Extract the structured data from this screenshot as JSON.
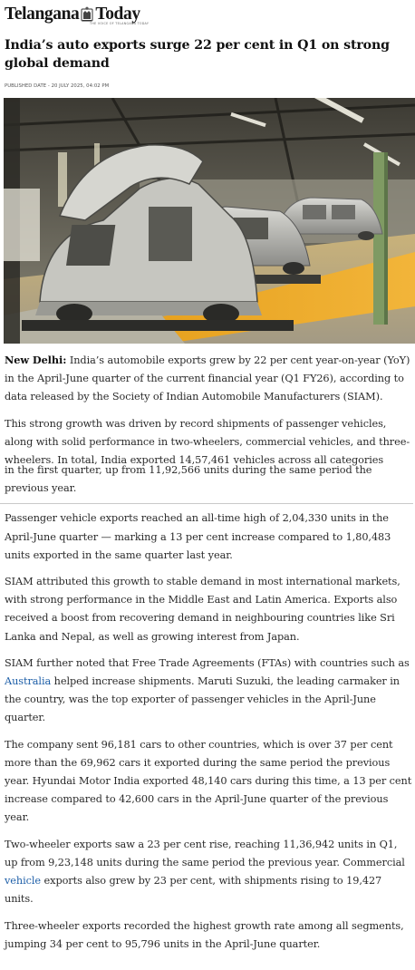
{
  "site": {
    "name_part1": "Telangana",
    "name_part2": "Today",
    "tagline": "THE VOICE OF TELANGANA TODAY"
  },
  "article": {
    "title": "India’s auto exports surge 22 per cent in Q1 on strong global demand",
    "published": "PUBLISHED DATE - 20 JULY 2025, 04:02 PM",
    "lead_place": "New Delhi:",
    "p1": " India’s automobile exports grew by 22 per cent year-on-year (YoY) in the April-June quarter of the current financial year (Q1 FY26), according to data released by the Society of Indian Automobile Manufacturers (SIAM).",
    "p2a": "This strong growth was driven by record shipments of passenger vehicles, along with solid performance in two-wheelers, commercial vehicles, and three-wheelers. In total, India exported 14,57,461 vehicles across all categories",
    "p2b": "in the first quarter, up from 11,92,566 units during the same period the previous year.",
    "p3": "Passenger vehicle exports reached an all-time high of 2,04,330 units in the April-June quarter — marking a 13 per cent increase compared to 1,80,483 units exported in the same quarter last year.",
    "p4": "SIAM attributed this growth to stable demand in most international markets, with strong performance in the Middle East and Latin America. Exports also received a boost from recovering demand in neighbouring countries like Sri Lanka and Nepal, as well as growing interest from Japan.",
    "p5_pre": "SIAM further noted that Free Trade Agreements (FTAs) with countries such as ",
    "p5_link": "Australia",
    "p5_post": " helped increase shipments. Maruti Suzuki, the leading carmaker in the country, was the top exporter of passenger vehicles in the April-June quarter.",
    "p6": "The company sent 96,181 cars to other countries, which is over 37 per cent more than the 69,962 cars it exported during the same period the previous year. Hyundai Motor India exported 48,140 cars during this time, a 13 per cent increase compared to 42,600 cars in the April-June quarter of the previous year.",
    "p7_pre": "Two-wheeler exports saw a 23 per cent rise, reaching 11,36,942 units in Q1, up from 9,23,148 units during the same period the previous year. Commercial ",
    "p7_link": "vehicle",
    "p7_post": " exports also grew by 23 per cent, with shipments rising to 19,427 units.",
    "p8": "Three-wheeler exports recorded the highest growth rate among all segments, jumping 34 per cent to 95,796 units in the April-June quarter."
  },
  "hero_image": {
    "icon": "car-assembly-line-photo"
  },
  "colors": {
    "link": "#1e5fa8",
    "floor_yellow": "#e8a21a",
    "text": "#2a2a2a"
  }
}
